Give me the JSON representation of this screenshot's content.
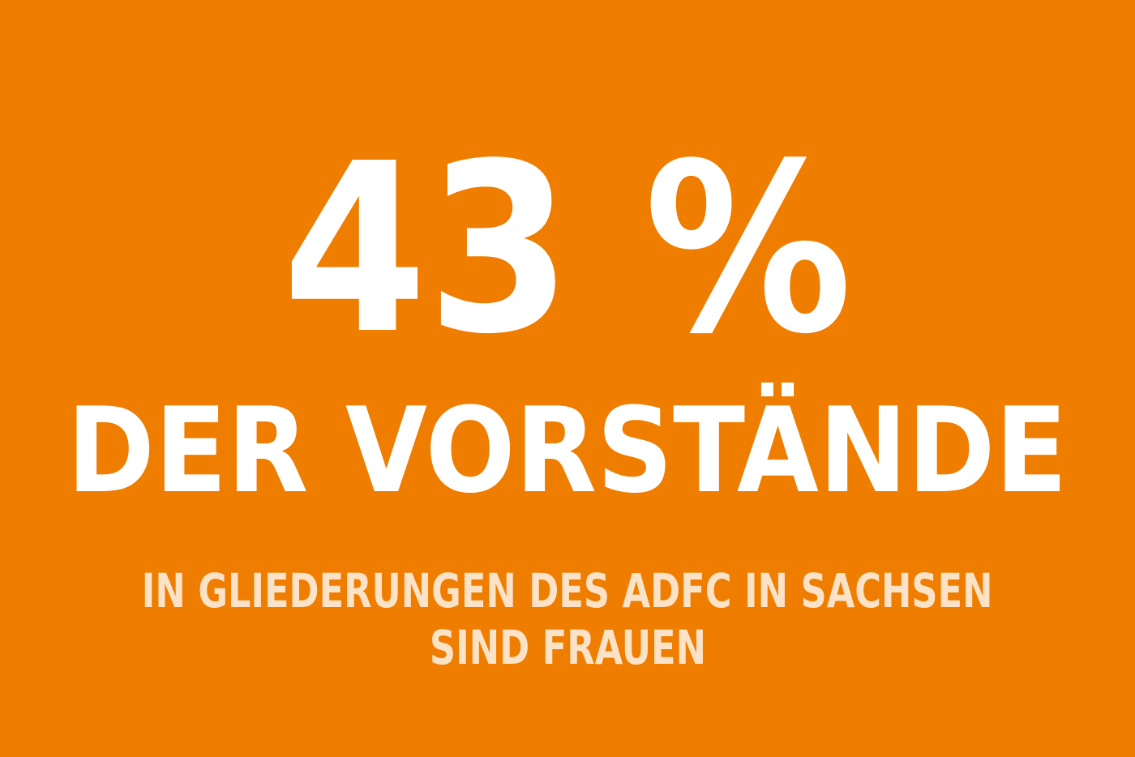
{
  "colors": {
    "background": "#EF7D00",
    "headline": "#FFFFFF",
    "subtitle": "#FCE3C8"
  },
  "headline": {
    "percentage": "43 %",
    "text": "DER VORSTÄNDE"
  },
  "subtitle": {
    "line1": "IN GLIEDERUNGEN DES ADFC IN SACHSEN",
    "line2": "SIND FRAUEN"
  }
}
